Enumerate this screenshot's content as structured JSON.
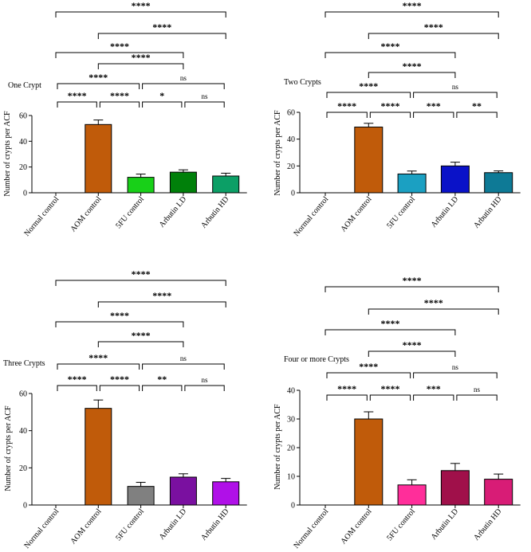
{
  "chart_data": [
    {
      "type": "bar",
      "title": "One Crypt",
      "ylabel": "Number of crypts per ACF",
      "ylim": [
        0,
        60
      ],
      "yticks": [
        0,
        20,
        40,
        60
      ],
      "categories": [
        "Normal control",
        "AOM control",
        "5FU control",
        "Arbutin LD",
        "Arbutin HD"
      ],
      "values": [
        0,
        53,
        12,
        16,
        13
      ],
      "errors": [
        0,
        3.5,
        2.5,
        1.8,
        2.2
      ],
      "colors": [
        "#ffffff",
        "#c05b0a",
        "#18d018",
        "#00800a",
        "#0c9f66"
      ],
      "comparisons": [
        {
          "from": 0,
          "to": 4,
          "label": "****"
        },
        {
          "from": 1,
          "to": 4,
          "label": "****"
        },
        {
          "from": 0,
          "to": 3,
          "label": "****"
        },
        {
          "from": 1,
          "to": 3,
          "label": "****"
        },
        {
          "from": 0,
          "to": 2,
          "label": "****"
        },
        {
          "from": 2,
          "to": 4,
          "label": "ns"
        },
        {
          "from": 0,
          "to": 1,
          "label": "****"
        },
        {
          "from": 1,
          "to": 2,
          "label": "****"
        },
        {
          "from": 2,
          "to": 3,
          "label": "*"
        },
        {
          "from": 3,
          "to": 4,
          "label": "ns"
        }
      ]
    },
    {
      "type": "bar",
      "title": "Two Crypts",
      "ylabel": "Number of crypts per ACF",
      "ylim": [
        0,
        60
      ],
      "yticks": [
        0,
        20,
        40,
        60
      ],
      "categories": [
        "Normal control",
        "AOM control",
        "5FU control",
        "Arbutin LD",
        "Arbutin HD"
      ],
      "values": [
        0,
        49,
        14,
        20,
        15
      ],
      "errors": [
        0,
        2.8,
        2.2,
        2.8,
        1.3
      ],
      "colors": [
        "#ffffff",
        "#c05b0a",
        "#1ba0c2",
        "#0a12c8",
        "#0e7a96"
      ],
      "comparisons": [
        {
          "from": 0,
          "to": 4,
          "label": "****"
        },
        {
          "from": 1,
          "to": 4,
          "label": "****"
        },
        {
          "from": 0,
          "to": 3,
          "label": "****"
        },
        {
          "from": 1,
          "to": 3,
          "label": "****"
        },
        {
          "from": 0,
          "to": 2,
          "label": "****"
        },
        {
          "from": 2,
          "to": 4,
          "label": "ns"
        },
        {
          "from": 0,
          "to": 1,
          "label": "****"
        },
        {
          "from": 1,
          "to": 2,
          "label": "****"
        },
        {
          "from": 2,
          "to": 3,
          "label": "***"
        },
        {
          "from": 3,
          "to": 4,
          "label": "**"
        }
      ]
    },
    {
      "type": "bar",
      "title": "Three Crypts",
      "ylabel": "Number of crypts per ACF",
      "ylim": [
        0,
        60
      ],
      "yticks": [
        0,
        20,
        40,
        60
      ],
      "categories": [
        "Normal control",
        "AOM control",
        "5FU control",
        "Arbutin LD",
        "Arbutin HD"
      ],
      "values": [
        0,
        52,
        10,
        15,
        12.5
      ],
      "errors": [
        0,
        4.5,
        2.2,
        1.8,
        1.8
      ],
      "colors": [
        "#ffffff",
        "#c05b0a",
        "#808080",
        "#7a10a0",
        "#b010e8"
      ],
      "comparisons": [
        {
          "from": 0,
          "to": 4,
          "label": "****"
        },
        {
          "from": 1,
          "to": 4,
          "label": "****"
        },
        {
          "from": 0,
          "to": 3,
          "label": "****"
        },
        {
          "from": 1,
          "to": 3,
          "label": "****"
        },
        {
          "from": 0,
          "to": 2,
          "label": "****"
        },
        {
          "from": 2,
          "to": 4,
          "label": "ns"
        },
        {
          "from": 0,
          "to": 1,
          "label": "****"
        },
        {
          "from": 1,
          "to": 2,
          "label": "****"
        },
        {
          "from": 2,
          "to": 3,
          "label": "**"
        },
        {
          "from": 3,
          "to": 4,
          "label": "ns"
        }
      ]
    },
    {
      "type": "bar",
      "title": "Four or more Crypts",
      "ylabel": "Number of crypts per ACF",
      "ylim": [
        0,
        40
      ],
      "yticks": [
        0,
        10,
        20,
        30,
        40
      ],
      "categories": [
        "Normal control",
        "AOM control",
        "5FU control",
        "Arbutin LD",
        "Arbutin HD"
      ],
      "values": [
        0,
        30,
        7,
        12,
        9
      ],
      "errors": [
        0,
        2.5,
        1.8,
        2.5,
        1.8
      ],
      "colors": [
        "#ffffff",
        "#c05b0a",
        "#ff2e9a",
        "#a0104a",
        "#d81c76"
      ],
      "comparisons": [
        {
          "from": 0,
          "to": 4,
          "label": "****"
        },
        {
          "from": 1,
          "to": 4,
          "label": "****"
        },
        {
          "from": 0,
          "to": 3,
          "label": "****"
        },
        {
          "from": 1,
          "to": 3,
          "label": "****"
        },
        {
          "from": 0,
          "to": 2,
          "label": "****"
        },
        {
          "from": 2,
          "to": 4,
          "label": "ns"
        },
        {
          "from": 0,
          "to": 1,
          "label": "****"
        },
        {
          "from": 1,
          "to": 2,
          "label": "****"
        },
        {
          "from": 2,
          "to": 3,
          "label": "***"
        },
        {
          "from": 3,
          "to": 4,
          "label": "ns"
        }
      ]
    }
  ]
}
